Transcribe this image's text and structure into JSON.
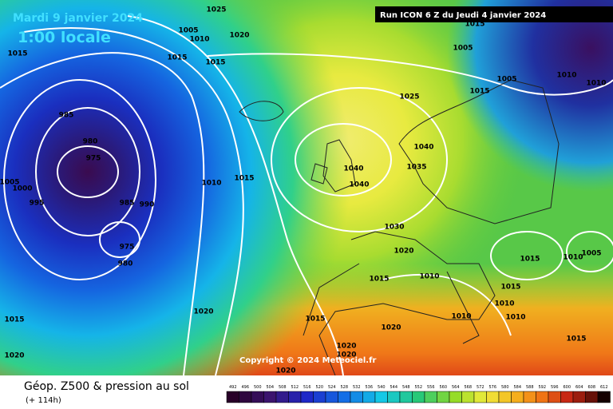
{
  "header": {
    "date": "Mardi 9 janvier 2024",
    "time": "1:00 locale",
    "run": "Run ICON 6 Z du Jeudi 4 janvier 2024"
  },
  "copyright": "Copyright © 2024 Meteociel.fr",
  "legend": {
    "title": "Géop. Z500 & pression au sol",
    "lead": "(+ 114h)",
    "scale": [
      492,
      496,
      500,
      504,
      508,
      512,
      516,
      520,
      524,
      528,
      532,
      536,
      540,
      544,
      548,
      552,
      556,
      560,
      564,
      568,
      572,
      576,
      580,
      584,
      588,
      592,
      596,
      600,
      604,
      608,
      612
    ]
  },
  "isobar_labels": [
    "1015",
    "1005",
    "1010",
    "1020",
    "1025",
    "1015",
    "1015",
    "985",
    "980",
    "975",
    "1005",
    "1000",
    "995",
    "985",
    "990",
    "975",
    "980",
    "1010",
    "1015",
    "1005",
    "1005",
    "1010",
    "1010",
    "1015",
    "1025",
    "1040",
    "1040",
    "1040",
    "1035",
    "1030",
    "1020",
    "1015",
    "1010",
    "1015",
    "1015",
    "1010",
    "1010",
    "1010",
    "1010",
    "1005",
    "1015",
    "1015",
    "1020",
    "1020",
    "1015",
    "1020",
    "1020",
    "1020",
    "1020",
    "1015"
  ]
}
